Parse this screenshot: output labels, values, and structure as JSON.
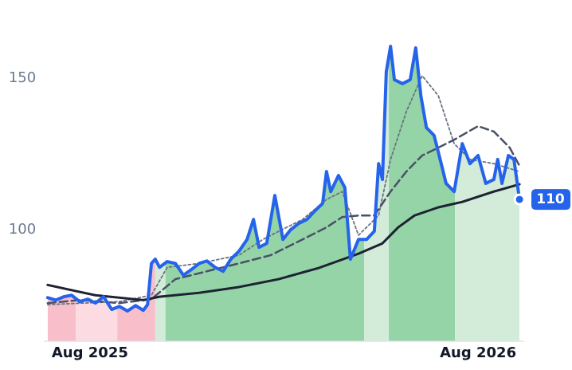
{
  "chart_data": {
    "type": "line",
    "xlim": [
      2025.57,
      2026.695
    ],
    "ylim": [
      63.2,
      175.8
    ],
    "yticks": [
      100,
      150
    ],
    "xticks": [
      {
        "value": 2025.678,
        "label": "Aug 2025"
      },
      {
        "value": 2026.587,
        "label": "Aug 2026"
      }
    ],
    "regions": [
      {
        "x0": 2025.579,
        "x1": 2025.645,
        "color": "#f8bfca"
      },
      {
        "x0": 2025.645,
        "x1": 2025.742,
        "color": "#fcdce2"
      },
      {
        "x0": 2025.742,
        "x1": 2025.831,
        "color": "#f8bfca"
      },
      {
        "x0": 2025.831,
        "x1": 2025.855,
        "color": "#d3ecd9"
      },
      {
        "x0": 2025.855,
        "x1": 2026.32,
        "color": "#94d4a6"
      },
      {
        "x0": 2026.32,
        "x1": 2026.378,
        "color": "#d3ecd9"
      },
      {
        "x0": 2026.378,
        "x1": 2026.533,
        "color": "#94d4a6"
      },
      {
        "x0": 2026.533,
        "x1": 2026.684,
        "color": "#d3ecd9"
      }
    ],
    "series": [
      {
        "color": "#2563eb",
        "style": "solid",
        "width": 4,
        "fill": true,
        "x": [
          2025.579,
          2025.598,
          2025.617,
          2025.635,
          2025.654,
          2025.673,
          2025.691,
          2025.71,
          2025.729,
          2025.747,
          2025.766,
          2025.785,
          2025.803,
          2025.813,
          2025.822,
          2025.831,
          2025.841,
          2025.859,
          2025.878,
          2025.897,
          2025.915,
          2025.934,
          2025.952,
          2025.971,
          2025.99,
          2026.008,
          2026.027,
          2026.046,
          2026.061,
          2026.074,
          2026.092,
          2026.111,
          2026.13,
          2026.148,
          2026.167,
          2026.186,
          2026.204,
          2026.223,
          2026.232,
          2026.242,
          2026.26,
          2026.275,
          2026.288,
          2026.307,
          2026.326,
          2026.344,
          2026.354,
          2026.363,
          2026.372,
          2026.382,
          2026.391,
          2026.41,
          2026.428,
          2026.441,
          2026.453,
          2026.466,
          2026.484,
          2026.503,
          2026.512,
          2026.531,
          2026.55,
          2026.568,
          2026.587,
          2026.605,
          2026.624,
          2026.633,
          2026.643,
          2026.658,
          2026.671,
          2026.684
        ],
        "values": [
          77.6,
          76.8,
          77.9,
          78.4,
          76.3,
          77.1,
          75.8,
          77.9,
          73.7,
          74.7,
          73.2,
          75.0,
          73.4,
          75.3,
          88.9,
          90.3,
          87.6,
          89.5,
          88.9,
          85.0,
          86.8,
          88.9,
          89.7,
          87.6,
          86.3,
          90.3,
          92.9,
          96.8,
          103.4,
          94.2,
          95.5,
          111.3,
          96.8,
          100,
          102.1,
          103.4,
          106.1,
          108.7,
          119.2,
          112.6,
          117.9,
          113.9,
          90.3,
          96.8,
          96.8,
          99.5,
          121.8,
          116.6,
          152.1,
          160.5,
          149.5,
          148.2,
          149.5,
          160,
          144.2,
          133.7,
          131.1,
          120.5,
          115.3,
          112.6,
          128.4,
          121.8,
          124.5,
          115.3,
          116.6,
          123.2,
          115.3,
          124.5,
          123.2,
          110
        ]
      },
      {
        "color": "#1e2233",
        "style": "solid",
        "width": 3,
        "x": [
          2025.579,
          2025.654,
          2025.691,
          2025.803,
          2025.841,
          2025.934,
          2026.027,
          2026.12,
          2026.214,
          2026.307,
          2026.363,
          2026.4,
          2026.438,
          2026.494,
          2026.55,
          2026.624,
          2026.684
        ],
        "values": [
          81.8,
          79.5,
          78.4,
          76.8,
          77.9,
          79.2,
          81.1,
          83.7,
          87.4,
          92.1,
          95.5,
          100.8,
          104.7,
          107.4,
          109.2,
          112.6,
          115.0
        ]
      },
      {
        "color": "#4a5068",
        "style": "dashed",
        "width": 2.5,
        "x": [
          2025.579,
          2025.654,
          2025.747,
          2025.822,
          2025.878,
          2025.952,
          2026.027,
          2026.101,
          2026.176,
          2026.232,
          2026.269,
          2026.307,
          2026.344,
          2026.382,
          2026.419,
          2026.456,
          2026.494,
          2026.531,
          2026.587,
          2026.624,
          2026.661,
          2026.684
        ],
        "values": [
          75.8,
          76.8,
          75.8,
          77.1,
          83.7,
          86.3,
          88.9,
          91.6,
          96.8,
          100.8,
          104.2,
          104.7,
          104.7,
          112.6,
          119.2,
          124.5,
          127.1,
          129.7,
          134.2,
          132.4,
          127.1,
          121.1
        ]
      },
      {
        "color": "#6b7280",
        "style": "dotted",
        "width": 1.8,
        "x": [
          2025.579,
          2025.747,
          2025.822,
          2025.859,
          2025.934,
          2026.027,
          2026.083,
          2026.12,
          2026.176,
          2026.232,
          2026.269,
          2026.307,
          2026.354,
          2026.382,
          2026.419,
          2026.456,
          2026.494,
          2026.531,
          2026.568,
          2026.624,
          2026.684
        ],
        "values": [
          75.3,
          76.3,
          78.4,
          87.6,
          88.9,
          91.6,
          96.8,
          99.5,
          103.4,
          110.0,
          112.6,
          98.2,
          104.7,
          123.2,
          139.0,
          150.8,
          144.2,
          128.4,
          123.2,
          121.8,
          119.2
        ]
      }
    ]
  }
}
